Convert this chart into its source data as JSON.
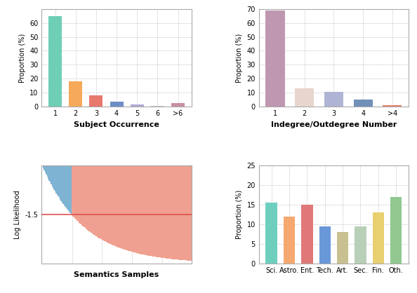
{
  "subplot1": {
    "categories": [
      "1",
      "2",
      "3",
      "4",
      "5",
      "6",
      ">6"
    ],
    "values": [
      65,
      18,
      8,
      3.5,
      1.5,
      0.5,
      2.5
    ],
    "colors": [
      "#6ecfb6",
      "#f5a959",
      "#e8786e",
      "#6b8ec7",
      "#b0a8d4",
      "#c8c8c8",
      "#c98fa0"
    ],
    "xlabel": "Subject Occurrence",
    "ylabel": "Proportion (%)",
    "ylim": [
      0,
      70
    ],
    "yticks": [
      0,
      10,
      20,
      30,
      40,
      50,
      60
    ]
  },
  "subplot2": {
    "categories": [
      "1",
      "2",
      "3",
      "4",
      ">4"
    ],
    "values": [
      69,
      13,
      10.5,
      5,
      1.2
    ],
    "colors": [
      "#c097b0",
      "#e8d5cc",
      "#b0b4d4",
      "#7090b8",
      "#e88070"
    ],
    "xlabel": "Indegree/Outdegree Number",
    "ylabel": "Proportion (%)",
    "ylim": [
      0,
      70
    ],
    "yticks": [
      0,
      10,
      20,
      30,
      40,
      50,
      60,
      70
    ]
  },
  "subplot3": {
    "n_total": 150,
    "n_blue_bars": 55,
    "blue_color": "#7fb3d3",
    "red_color": "#f0a090",
    "threshold": -1.5,
    "xlabel": "Semantics Samples",
    "ylabel": "Log Likelihood",
    "hline_color": "#e05050",
    "ylim": [
      -3.0,
      0
    ],
    "yticks": [
      -3.0,
      -2.5,
      -2.0,
      -1.5,
      -1.0,
      -0.5,
      0
    ],
    "ytick_labels": [
      "",
      "",
      "",
      "-1.5",
      "",
      "",
      ""
    ]
  },
  "subplot4": {
    "categories": [
      "Sci.",
      "Astro.",
      "Ent.",
      "Tech.",
      "Art.",
      "Sec.",
      "Fin.",
      "Oth."
    ],
    "values": [
      15.5,
      12,
      15,
      9.5,
      8,
      9.5,
      13,
      17
    ],
    "colors": [
      "#6ecfbf",
      "#f5a870",
      "#e07878",
      "#6898d8",
      "#c8c090",
      "#b8cfb8",
      "#e8d070",
      "#90c890"
    ],
    "xlabel": "",
    "ylabel": "Proportion (%)",
    "ylim": [
      0,
      25
    ],
    "yticks": [
      0,
      5,
      10,
      15,
      20,
      25
    ]
  },
  "figure": {
    "bg_color": "white",
    "grid_color": "#888888",
    "grid_alpha": 0.7,
    "grid_linestyle": ":",
    "spine_color": "#aaaaaa",
    "spine_linewidth": 0.8
  }
}
